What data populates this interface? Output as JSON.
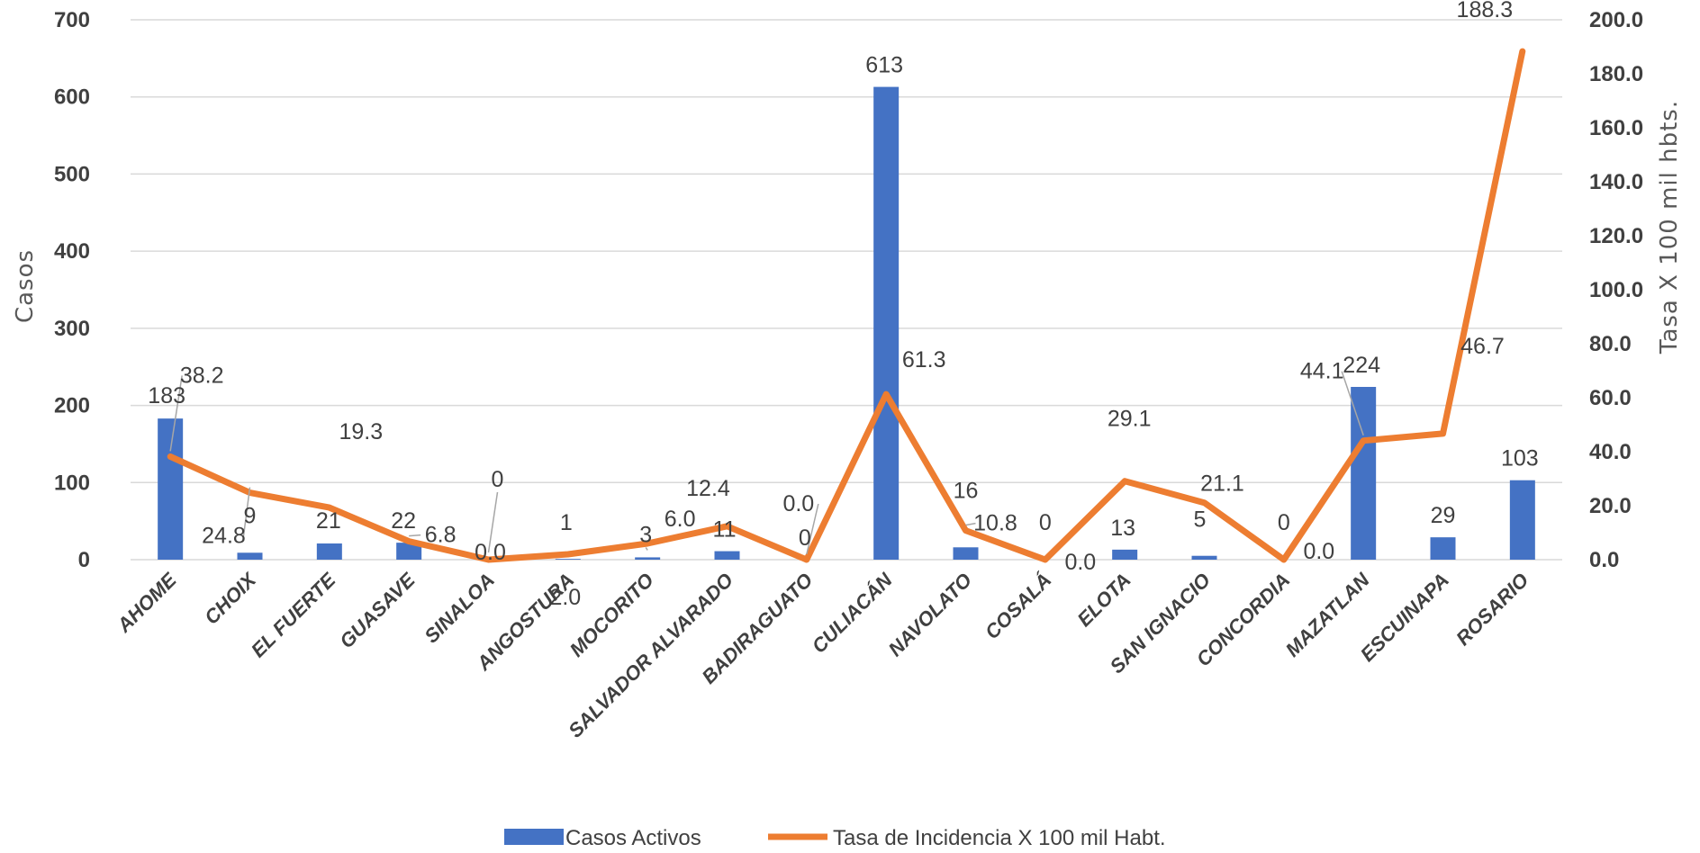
{
  "chart_data": {
    "type": "bar",
    "categories": [
      "AHOME",
      "CHOIX",
      "EL FUERTE",
      "GUASAVE",
      "SINALOA",
      "ANGOSTURA",
      "MOCORITO",
      "SALVADOR ALVARADO",
      "BADIRAGUATO",
      "CULIACÁN",
      "NAVOLATO",
      "COSALÁ",
      "ELOTA",
      "SAN IGNACIO",
      "CONCORDIA",
      "MAZATLAN",
      "ESCUINAPA",
      "ROSARIO"
    ],
    "series": [
      {
        "name": "Casos Activos",
        "type": "bar",
        "axis": "left",
        "color": "#4472C4",
        "values": [
          183,
          9,
          21,
          22,
          0,
          1,
          3,
          11,
          0,
          613,
          16,
          0,
          13,
          5,
          0,
          224,
          29,
          103
        ],
        "labels": [
          "183",
          "9",
          "21",
          "22",
          "0",
          "1",
          "3",
          "11",
          "0",
          "613",
          "16",
          "0",
          "13",
          "5",
          "0",
          "224",
          "29",
          "103"
        ]
      },
      {
        "name": "Tasa de Incidencia X 100 mil Habt.",
        "type": "line",
        "axis": "right",
        "color": "#ED7D31",
        "values": [
          38.2,
          24.8,
          19.3,
          6.8,
          0.0,
          2.0,
          6.0,
          12.4,
          0.0,
          61.3,
          10.8,
          0.0,
          29.1,
          21.1,
          0.0,
          44.1,
          46.7,
          188.3
        ],
        "labels": [
          "38.2",
          "24.8",
          "19.3",
          "6.8",
          "0.0",
          "2.0",
          "6.0",
          "12.4",
          "0.0",
          "61.3",
          "10.8",
          "0.0",
          "29.1",
          "21.1",
          "0.0",
          "44.1",
          "46.7",
          "188.3"
        ]
      }
    ],
    "y_left": {
      "label": "Casos",
      "lim": [
        0,
        700
      ],
      "ticks": [
        "0",
        "100",
        "200",
        "300",
        "400",
        "500",
        "600",
        "700"
      ]
    },
    "y_right": {
      "label": "Tasa X 100 mil hbts.",
      "lim": [
        0,
        200
      ],
      "ticks": [
        "0.0",
        "20.0",
        "40.0",
        "60.0",
        "80.0",
        "100.0",
        "120.0",
        "140.0",
        "160.0",
        "180.0",
        "200.0"
      ]
    },
    "grid": true,
    "legend_position": "bottom"
  }
}
